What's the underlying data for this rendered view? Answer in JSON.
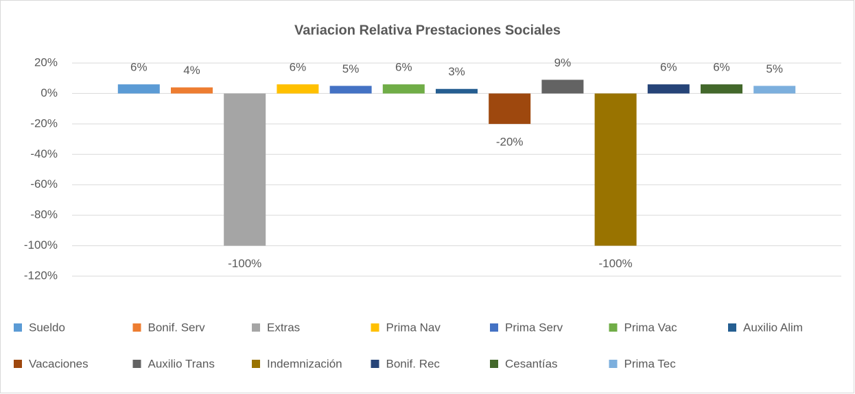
{
  "chart_data": {
    "type": "bar",
    "title": "Variacion Relativa Prestaciones Sociales",
    "ylim": [
      -120,
      20
    ],
    "yticks": [
      {
        "value": 20,
        "label": "20%"
      },
      {
        "value": 0,
        "label": "0%"
      },
      {
        "value": -20,
        "label": "-20%"
      },
      {
        "value": -40,
        "label": "-40%"
      },
      {
        "value": -60,
        "label": "-60%"
      },
      {
        "value": -80,
        "label": "-80%"
      },
      {
        "value": -100,
        "label": "-100%"
      },
      {
        "value": -120,
        "label": "-120%"
      }
    ],
    "grid": true,
    "legend": "bottom",
    "series": [
      {
        "name": "Sueldo",
        "color": "#5b9bd5",
        "values": [
          6
        ],
        "value_labels": [
          "6%"
        ]
      },
      {
        "name": "Bonif. Serv",
        "color": "#ed7d31",
        "values": [
          4
        ],
        "value_labels": [
          "4%"
        ]
      },
      {
        "name": "Extras",
        "color": "#a5a5a5",
        "values": [
          -100
        ],
        "value_labels": [
          "-100%"
        ]
      },
      {
        "name": "Prima Nav",
        "color": "#ffc000",
        "values": [
          6
        ],
        "value_labels": [
          "6%"
        ]
      },
      {
        "name": "Prima Serv",
        "color": "#4472c4",
        "values": [
          5
        ],
        "value_labels": [
          "5%"
        ]
      },
      {
        "name": "Prima Vac",
        "color": "#70ad47",
        "values": [
          6
        ],
        "value_labels": [
          "6%"
        ]
      },
      {
        "name": "Auxilio Alim",
        "color": "#255e91",
        "values": [
          3
        ],
        "value_labels": [
          "3%"
        ]
      },
      {
        "name": "Vacaciones",
        "color": "#9e480e",
        "values": [
          -20
        ],
        "value_labels": [
          "-20%"
        ]
      },
      {
        "name": "Auxilio Trans",
        "color": "#636363",
        "values": [
          9
        ],
        "value_labels": [
          "9%"
        ]
      },
      {
        "name": "Indemnización",
        "color": "#997300",
        "values": [
          -100
        ],
        "value_labels": [
          "-100%"
        ]
      },
      {
        "name": "Bonif. Rec",
        "color": "#264478",
        "values": [
          6
        ],
        "value_labels": [
          "6%"
        ]
      },
      {
        "name": "Cesantías",
        "color": "#43682b",
        "values": [
          6
        ],
        "value_labels": [
          "6%"
        ]
      },
      {
        "name": "Prima Tec",
        "color": "#7cafdd",
        "values": [
          5
        ],
        "value_labels": [
          "5%"
        ]
      }
    ]
  }
}
